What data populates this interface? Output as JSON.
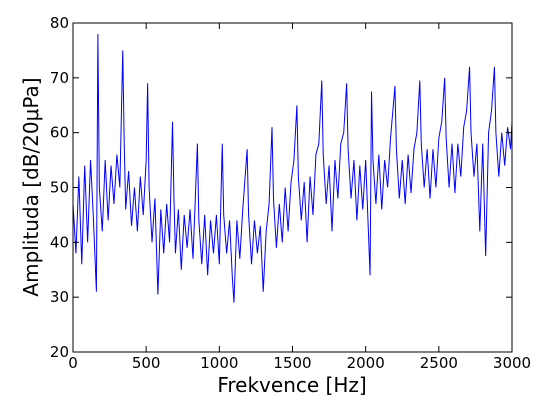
{
  "chart_data": {
    "type": "line",
    "x_label": "Frekvence [Hz]",
    "y_label": "Amplituda [dB/20μPa]",
    "xlim": [
      0,
      3000
    ],
    "xticks": [
      0,
      500,
      1000,
      1500,
      2000,
      2500,
      3000
    ],
    "ylim": [
      20,
      80
    ],
    "yticks": [
      20,
      30,
      40,
      50,
      60,
      70,
      80
    ],
    "series": [
      {
        "color": "#0000ff",
        "x": [
          0,
          20,
          40,
          60,
          80,
          100,
          120,
          140,
          160,
          170,
          180,
          200,
          220,
          240,
          260,
          280,
          300,
          320,
          340,
          350,
          360,
          380,
          400,
          420,
          440,
          460,
          480,
          500,
          510,
          520,
          540,
          560,
          580,
          600,
          620,
          640,
          660,
          680,
          690,
          700,
          720,
          740,
          760,
          780,
          800,
          820,
          850,
          860,
          880,
          900,
          920,
          940,
          960,
          980,
          1000,
          1020,
          1030,
          1050,
          1070,
          1090,
          1100,
          1120,
          1140,
          1160,
          1190,
          1200,
          1220,
          1240,
          1260,
          1280,
          1300,
          1320,
          1340,
          1360,
          1370,
          1390,
          1410,
          1430,
          1450,
          1470,
          1490,
          1510,
          1530,
          1540,
          1560,
          1580,
          1600,
          1620,
          1640,
          1660,
          1680,
          1700,
          1710,
          1730,
          1750,
          1770,
          1790,
          1810,
          1830,
          1850,
          1870,
          1880,
          1900,
          1920,
          1940,
          1960,
          1980,
          2000,
          2030,
          2040,
          2050,
          2070,
          2090,
          2110,
          2130,
          2150,
          2170,
          2200,
          2210,
          2230,
          2250,
          2270,
          2290,
          2310,
          2330,
          2350,
          2370,
          2380,
          2400,
          2420,
          2440,
          2460,
          2480,
          2500,
          2520,
          2540,
          2550,
          2570,
          2590,
          2610,
          2630,
          2650,
          2670,
          2690,
          2710,
          2720,
          2740,
          2760,
          2780,
          2800,
          2820,
          2840,
          2860,
          2880,
          2890,
          2910,
          2930,
          2950,
          2970,
          2990,
          3000
        ],
        "values": [
          47,
          38,
          52,
          36,
          54,
          40,
          55,
          44,
          31,
          78,
          50,
          42,
          55,
          44,
          54,
          47,
          56,
          50,
          75,
          58,
          46,
          53,
          43,
          50,
          42,
          52,
          45,
          55,
          69,
          50,
          40,
          48,
          30.5,
          46,
          38,
          47,
          40,
          62,
          48,
          38,
          46,
          35,
          45,
          39,
          46,
          37,
          58,
          44,
          36,
          45,
          34,
          44,
          38,
          45,
          36,
          58,
          45,
          38,
          44,
          33,
          29,
          44,
          37,
          46,
          57,
          45,
          36,
          44,
          38,
          43,
          31,
          42,
          47,
          61,
          48,
          39,
          47,
          40,
          50,
          42,
          51,
          55,
          65,
          52,
          44,
          51,
          40,
          52,
          45,
          56,
          58,
          69.5,
          56,
          47,
          54,
          42,
          55,
          48,
          58,
          60,
          69,
          57,
          48,
          55,
          44,
          54,
          46,
          55,
          34,
          67.5,
          55,
          47,
          56,
          46,
          55,
          50,
          59,
          68.5,
          57,
          48,
          55,
          47,
          56,
          49,
          57,
          60,
          69.5,
          58,
          50,
          57,
          48,
          57,
          50,
          59,
          62,
          70,
          59,
          50,
          58,
          49,
          58,
          52,
          61,
          64,
          72,
          60,
          52,
          58,
          42,
          58,
          37.5,
          60,
          64,
          72,
          60,
          52,
          60,
          54,
          61,
          57,
          62
        ]
      }
    ]
  }
}
